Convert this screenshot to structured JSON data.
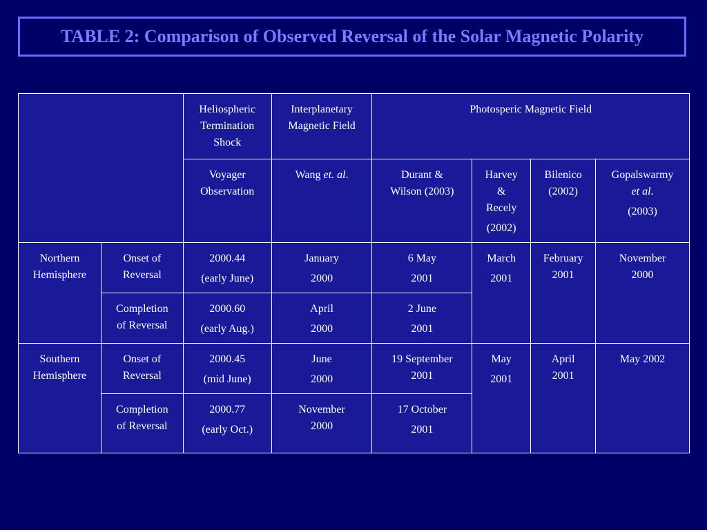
{
  "title": "TABLE 2:  Comparison of Observed Reversal of the Solar Magnetic Polarity",
  "header": {
    "heliospheric": [
      "Heliospheric",
      "Termination",
      "Shock"
    ],
    "interplanetary": [
      "Interplanetary",
      "Magnetic Field"
    ],
    "photospheric": "Photosperic Magnetic Field",
    "voyager": [
      "Voyager",
      "Observation"
    ],
    "wang": {
      "name": "Wang ",
      "etal": "et. al",
      "suffix": "."
    },
    "durant": [
      "Durant &",
      "Wilson (2003)"
    ],
    "harvey": [
      "Harvey",
      "&",
      "Recely",
      "(2002)"
    ],
    "bilenico": [
      "Bilenico",
      "(2002)"
    ],
    "gopal": {
      "name": "Gopalswarmy",
      "etal": "et al",
      "suffix": ".",
      "year": "(2003)"
    }
  },
  "rows": {
    "north_label": [
      "Northern",
      "Hemisphere"
    ],
    "south_label": [
      "Southern",
      "Hemisphere"
    ],
    "onset_label": [
      "Onset of",
      "Reversal"
    ],
    "completion_label": [
      "Completion",
      "of Reversal"
    ],
    "north_onset": {
      "voyager": [
        "2000.44",
        "(early June)"
      ],
      "wang": [
        "January",
        "2000"
      ],
      "durant": [
        "6 May",
        "2001"
      ],
      "harvey": [
        "March",
        "2001"
      ],
      "bilenico": [
        "February",
        "2001"
      ],
      "gopal": [
        "November",
        "2000"
      ]
    },
    "north_completion": {
      "voyager": [
        "2000.60",
        "(early Aug.)"
      ],
      "wang": [
        "April",
        "2000"
      ],
      "durant": [
        "2 June",
        "2001"
      ]
    },
    "south_onset": {
      "voyager": [
        "2000.45",
        "(mid June)"
      ],
      "wang": [
        "June",
        "2000"
      ],
      "durant": [
        "19 September",
        "2001"
      ],
      "harvey": [
        "May",
        "2001"
      ],
      "bilenico": [
        "April",
        "2001"
      ],
      "gopal": [
        "May 2002"
      ]
    },
    "south_completion": {
      "voyager": [
        "2000.77",
        "(early Oct.)"
      ],
      "wang": [
        "November",
        "2000"
      ],
      "durant": [
        "17 October",
        "2001"
      ]
    }
  }
}
